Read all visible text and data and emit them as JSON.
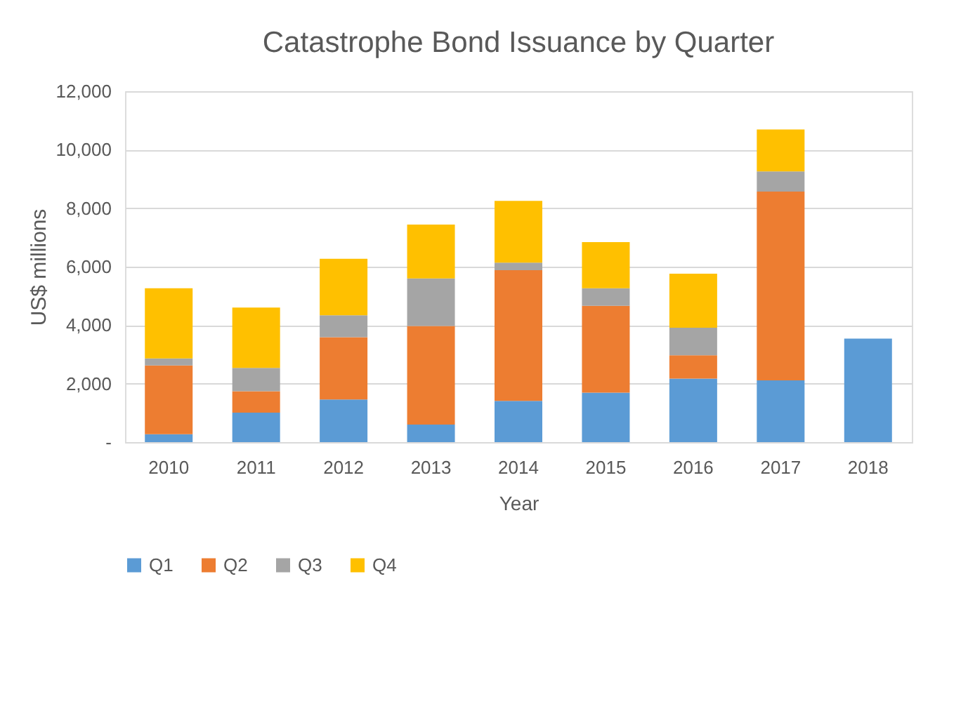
{
  "chart_data": {
    "type": "bar",
    "title": "Catastrophe Bond Issuance by Quarter",
    "xlabel": "Year",
    "ylabel": "US$ millions",
    "categories": [
      "2010",
      "2011",
      "2012",
      "2013",
      "2014",
      "2015",
      "2016",
      "2017",
      "2018"
    ],
    "series": [
      {
        "name": "Q1",
        "color": "#5b9bd5",
        "values": [
          270,
          1010,
          1460,
          600,
          1410,
          1690,
          2170,
          2110,
          3540
        ]
      },
      {
        "name": "Q2",
        "color": "#ed7d31",
        "values": [
          2350,
          730,
          2130,
          3370,
          4470,
          2970,
          800,
          6460,
          null
        ]
      },
      {
        "name": "Q3",
        "color": "#a5a5a5",
        "values": [
          240,
          800,
          750,
          1630,
          260,
          600,
          940,
          690,
          null
        ]
      },
      {
        "name": "Q4",
        "color": "#ffc000",
        "values": [
          2400,
          2060,
          1930,
          1840,
          2110,
          1580,
          1850,
          1430,
          null
        ]
      }
    ],
    "stacked": true,
    "ylim": [
      0,
      12000
    ],
    "yticks": [
      {
        "value": 0,
        "label": "-"
      },
      {
        "value": 2000,
        "label": "2,000"
      },
      {
        "value": 4000,
        "label": "4,000"
      },
      {
        "value": 6000,
        "label": "6,000"
      },
      {
        "value": 8000,
        "label": "8,000"
      },
      {
        "value": 10000,
        "label": "10,000"
      },
      {
        "value": 12000,
        "label": "12,000"
      }
    ],
    "grid": "y",
    "legend": "bottom"
  }
}
